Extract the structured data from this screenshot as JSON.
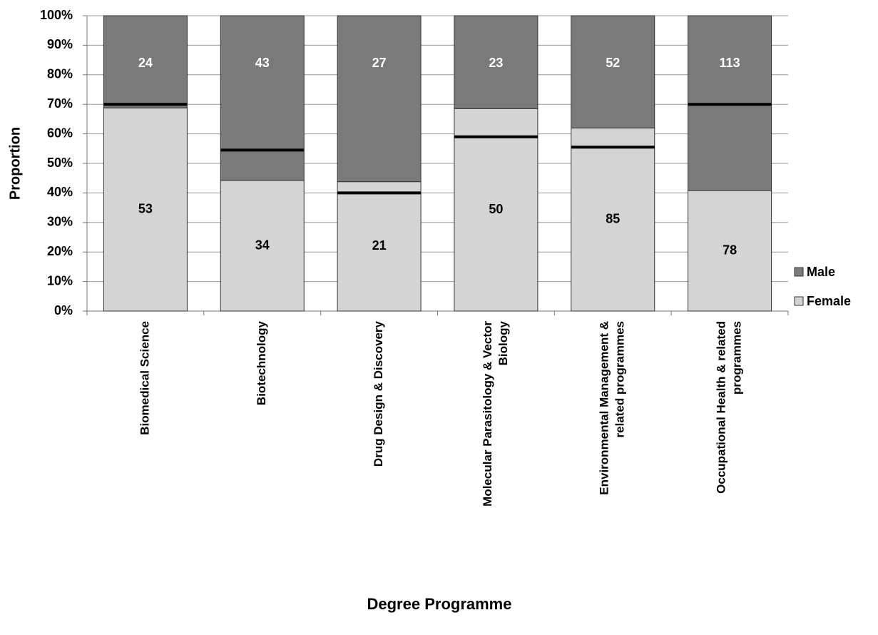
{
  "chart_data": {
    "type": "stacked-bar-100",
    "x_label": "Degree Programme",
    "y_label": "Proportion",
    "categories": [
      [
        "Biomedical Science"
      ],
      [
        "Biotechnology"
      ],
      [
        "Drug Design & Discovery"
      ],
      [
        "Molecular Parasitology & Vector",
        "Biology"
      ],
      [
        "Environmental Management &",
        "related programmes"
      ],
      [
        "Occupational Health & related",
        "programmes"
      ]
    ],
    "series": [
      {
        "name": "Female",
        "color": "#d4d4d4",
        "label_color": "#000000",
        "values": [
          68.8,
          44.2,
          43.8,
          68.5,
          62.0,
          40.8
        ],
        "counts": [
          53,
          34,
          21,
          50,
          85,
          78
        ]
      },
      {
        "name": "Male",
        "color": "#7a7a7a",
        "label_color": "#ffffff",
        "values": [
          31.2,
          55.8,
          56.2,
          31.5,
          38.0,
          59.2
        ],
        "counts": [
          24,
          43,
          27,
          23,
          52,
          113
        ]
      }
    ],
    "markers": {
      "color": "#000000",
      "values": [
        70,
        54.5,
        40,
        59,
        55.5,
        70
      ]
    },
    "ylim": [
      0,
      100
    ],
    "yticks": [
      {
        "value": 0,
        "label": "0%"
      },
      {
        "value": 10,
        "label": "10%"
      },
      {
        "value": 20,
        "label": "20%"
      },
      {
        "value": 30,
        "label": "30%"
      },
      {
        "value": 40,
        "label": "40%"
      },
      {
        "value": 50,
        "label": "50%"
      },
      {
        "value": 60,
        "label": "60%"
      },
      {
        "value": 70,
        "label": "70%"
      },
      {
        "value": 80,
        "label": "80%"
      },
      {
        "value": 90,
        "label": "90%"
      },
      {
        "value": 100,
        "label": "100%"
      }
    ],
    "grid": true,
    "legend": "right"
  }
}
